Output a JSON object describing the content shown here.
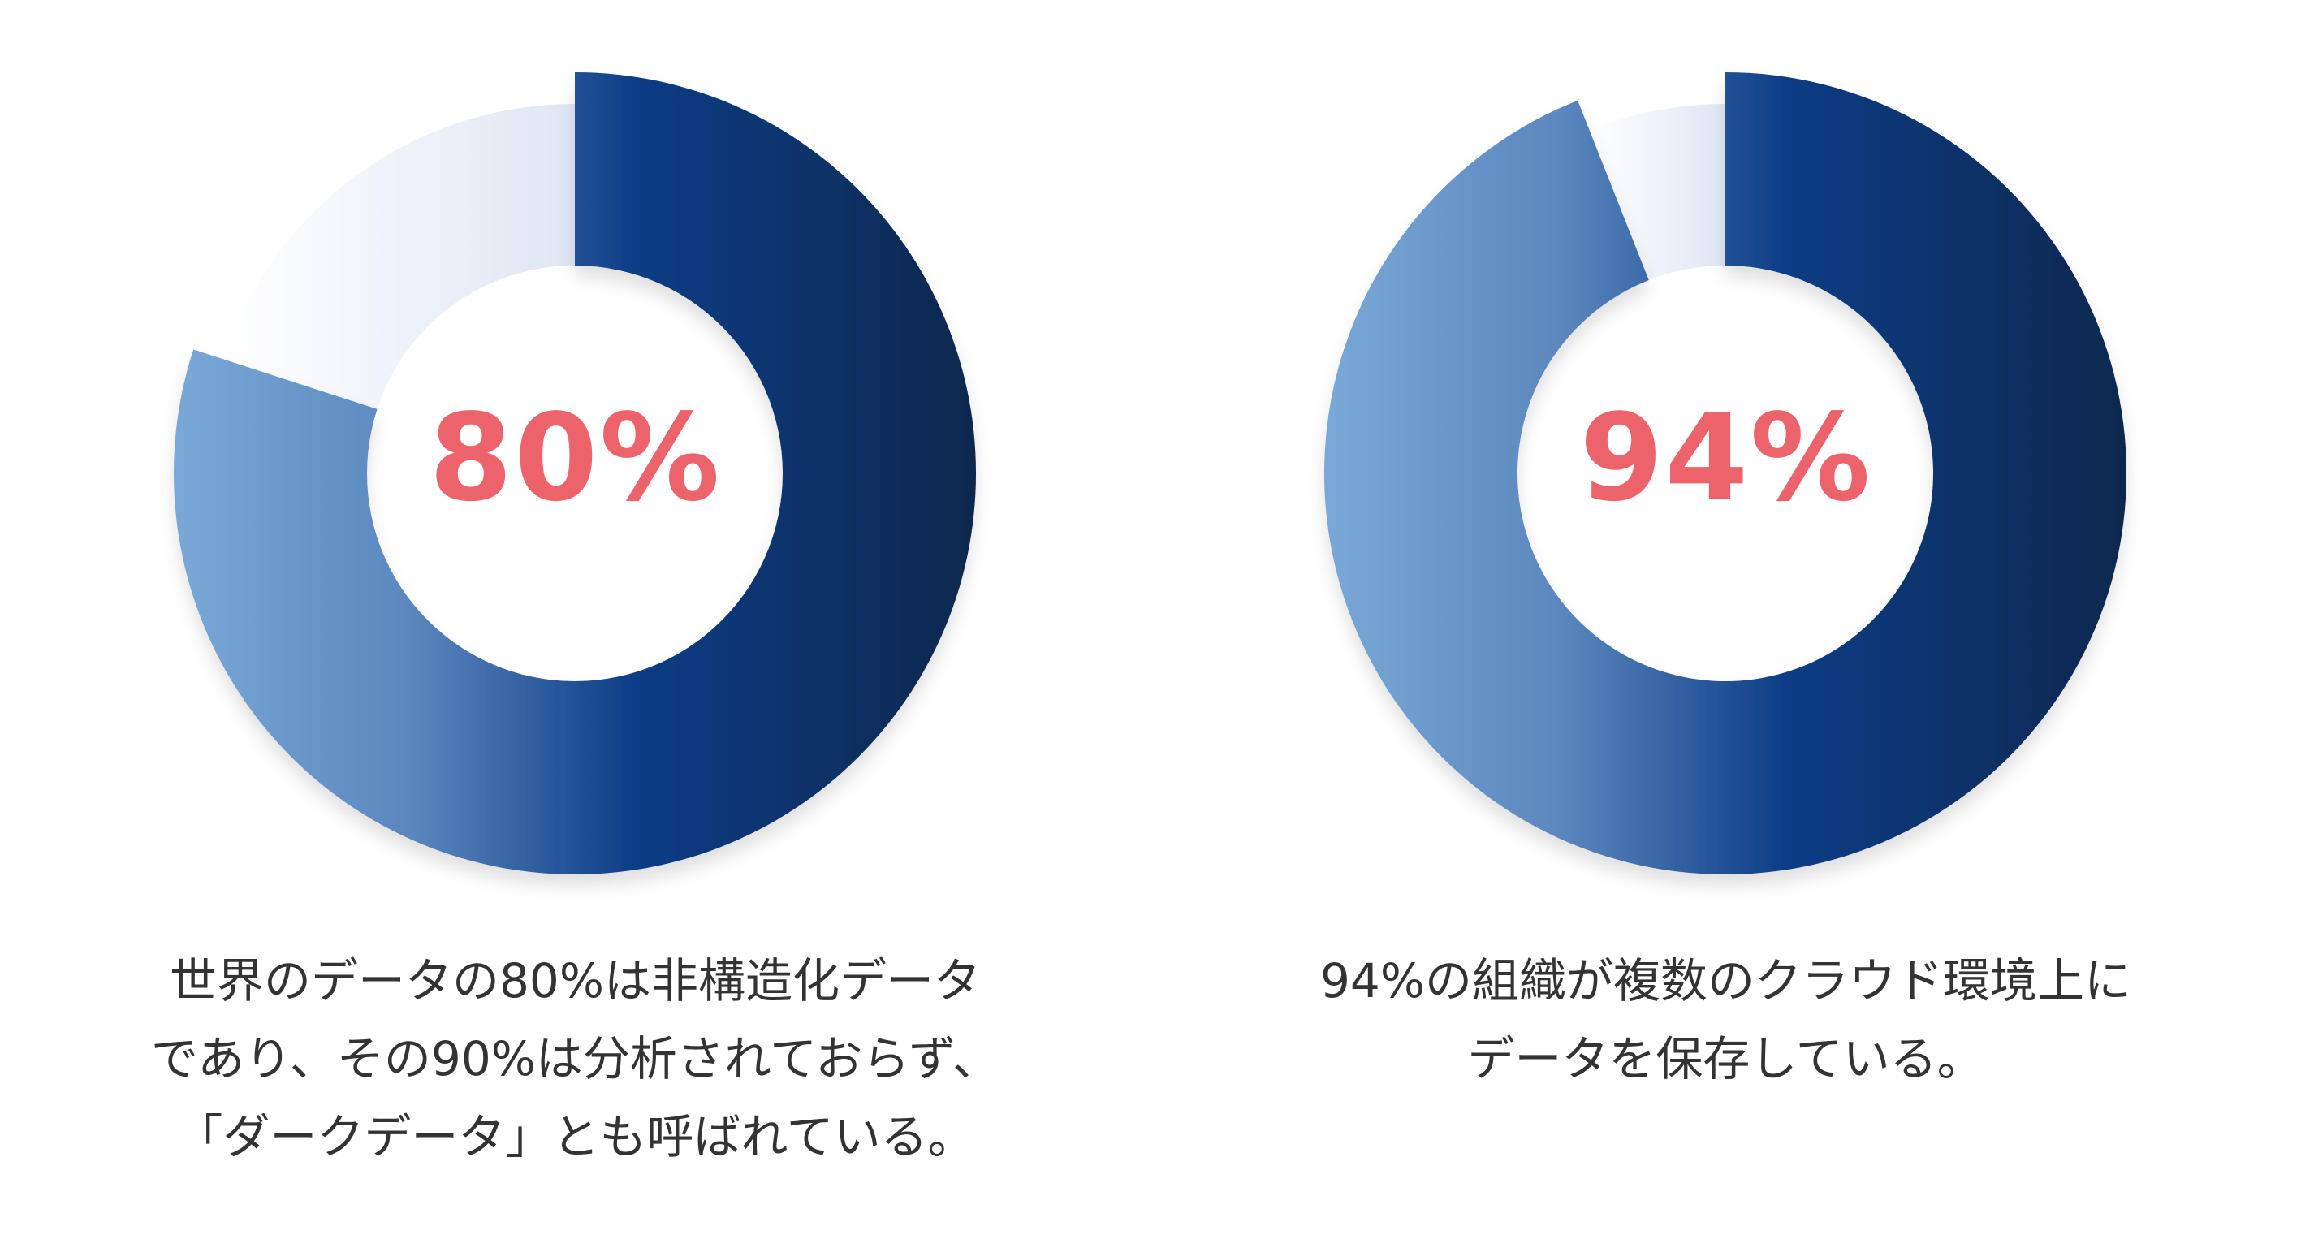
{
  "colors": {
    "accent_value": "#ec636b",
    "caption_text": "#333333",
    "ring_gradient": [
      "#7aa9d7",
      "#5a86bd",
      "#0b3c85",
      "#10284d"
    ],
    "remainder_gradient": [
      "#ffffff",
      "#dfe6f3"
    ]
  },
  "chart_data": [
    {
      "type": "pie",
      "style": "donut",
      "center_label": "80%",
      "values": [
        80,
        20
      ],
      "highlight_index": 0,
      "caption": [
        "世界のデータの80%は非構造化データ",
        "であり、その90%は分析されておらず、",
        "「ダークデータ」とも呼ばれている。"
      ]
    },
    {
      "type": "pie",
      "style": "donut",
      "center_label": "94%",
      "values": [
        94,
        6
      ],
      "highlight_index": 0,
      "caption": [
        "94%の組織が複数のクラウド環境上に",
        "データを保存している。"
      ]
    }
  ]
}
